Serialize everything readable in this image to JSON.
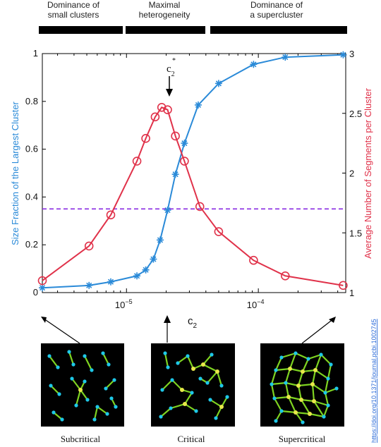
{
  "regimes": [
    {
      "label_lines": [
        "Dominance of",
        "small clusters"
      ]
    },
    {
      "label_lines": [
        "Maximal",
        "heterogeneity"
      ]
    },
    {
      "label_lines": [
        "Dominance of",
        "a supercluster"
      ]
    }
  ],
  "critical_marker": {
    "label": "c",
    "superscript": "*",
    "subscript": "2"
  },
  "panels": [
    {
      "caption": "Subcritical"
    },
    {
      "caption": "Critical"
    },
    {
      "caption": "Supercritical"
    }
  ],
  "doi": "https://doi.org/10.1371/journal.pcbi.1002745",
  "colors": {
    "blue_series": "#2a8ad8",
    "red_series": "#e0324a",
    "threshold": "#8a2be2",
    "network_bg": "#000000",
    "network_node": "#1ec8e8",
    "network_edge": "#7ed321",
    "network_hub": "#e8e84a"
  },
  "chart_data": {
    "type": "line",
    "xlabel": "c2",
    "xscale": "log",
    "xlim": [
      2.3e-06,
      0.00046
    ],
    "x_ticks": [
      1e-05,
      0.0001
    ],
    "x_tick_labels": [
      {
        "base": "10",
        "exp": "−5"
      },
      {
        "base": "10",
        "exp": "−4"
      }
    ],
    "y_left": {
      "label": "Size Fraction of the Largest Cluster",
      "lim": [
        0,
        1
      ],
      "ticks": [
        0,
        0.2,
        0.4,
        0.6,
        0.8,
        1
      ],
      "tick_labels": [
        "0",
        "0.2",
        "0.4",
        "0.6",
        "0.8",
        "1"
      ]
    },
    "y_right": {
      "label": "Average Number of Segments per Cluster",
      "lim": [
        1,
        3
      ],
      "ticks": [
        1,
        1.5,
        2,
        2.5,
        3
      ],
      "tick_labels": [
        "1",
        "1.5",
        "2",
        "2.5",
        "3"
      ]
    },
    "threshold_y_left": 0.35,
    "critical_x": 1.95e-05,
    "series": [
      {
        "axis": "left",
        "marker": "asterisk",
        "x": [
          2.3e-06,
          5.2e-06,
          7.6e-06,
          1.2e-05,
          1.4e-05,
          1.6e-05,
          1.8e-05,
          2.05e-05,
          2.35e-05,
          2.75e-05,
          3.5e-05,
          5e-05,
          9.2e-05,
          0.00016,
          0.00044
        ],
        "y": [
          0.02,
          0.03,
          0.045,
          0.07,
          0.095,
          0.14,
          0.22,
          0.345,
          0.495,
          0.625,
          0.785,
          0.875,
          0.955,
          0.985,
          0.995
        ]
      },
      {
        "axis": "right",
        "marker": "circle",
        "x": [
          2.3e-06,
          5.2e-06,
          7.6e-06,
          1.2e-05,
          1.4e-05,
          1.65e-05,
          1.85e-05,
          2.05e-05,
          2.35e-05,
          2.75e-05,
          3.6e-05,
          5e-05,
          9.2e-05,
          0.00016,
          0.00044
        ],
        "y": [
          1.1,
          1.39,
          1.65,
          2.1,
          2.29,
          2.47,
          2.55,
          2.53,
          2.31,
          2.1,
          1.72,
          1.51,
          1.27,
          1.14,
          1.06
        ]
      }
    ]
  }
}
